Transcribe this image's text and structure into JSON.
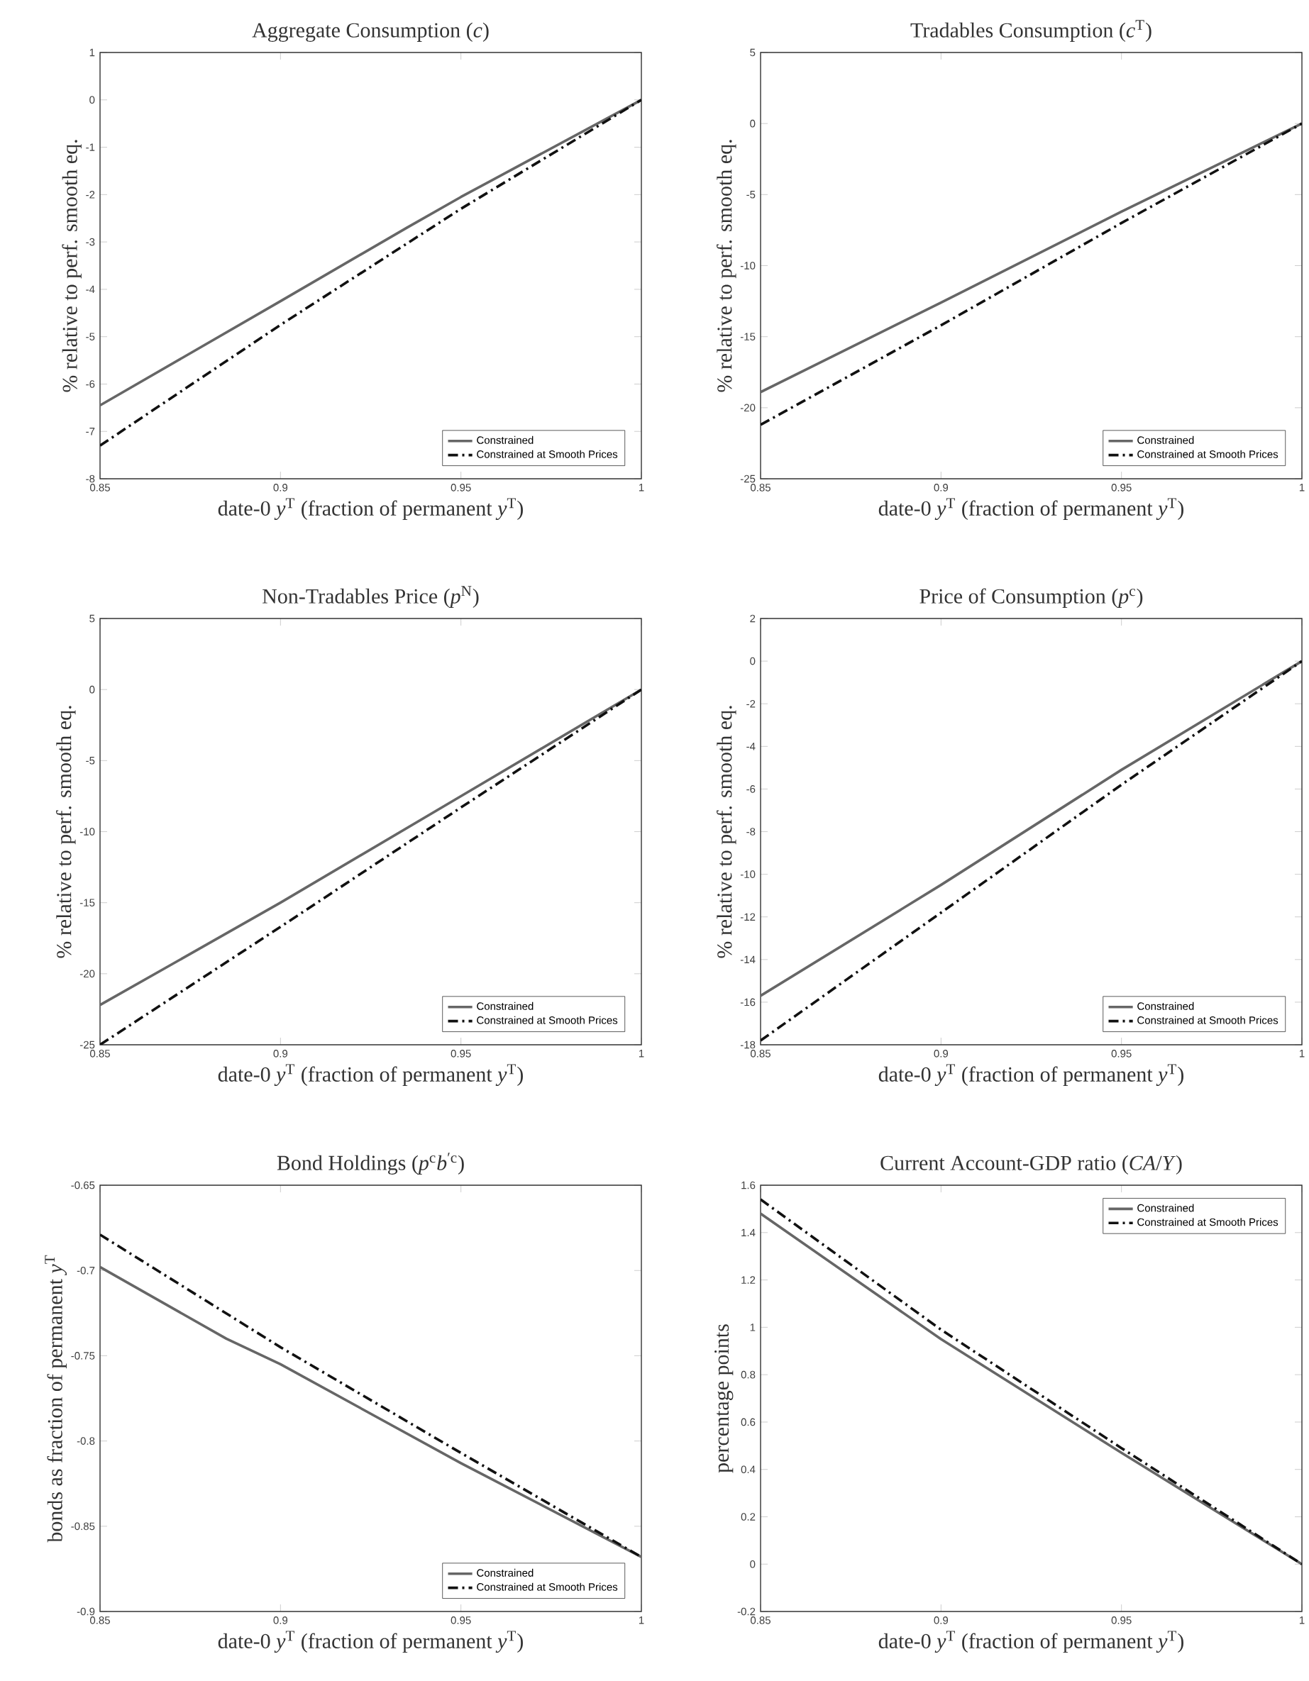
{
  "chart_data": [
    {
      "type": "line",
      "title": "Aggregate Consumption (*c*)",
      "xlabel": "date-0 *y*$^{T}$ (fraction of permanent *y*$^{T}$)",
      "ylabel": "% relative to perf. smooth eq.",
      "xlim": [
        0.85,
        1
      ],
      "ylim": [
        -8,
        1
      ],
      "xticks": [
        0.85,
        0.9,
        0.95,
        1
      ],
      "yticks": [
        -8,
        -7,
        -6,
        -5,
        -4,
        -3,
        -2,
        -1,
        0,
        1
      ],
      "legend": "bottom right",
      "marker": "none",
      "series": [
        {
          "name": "Constrained",
          "color": "#666666",
          "line_style": "solid",
          "x": [
            0.85,
            0.9,
            0.935,
            0.95,
            1
          ],
          "values": [
            -6.45,
            -4.25,
            -2.7,
            -2.05,
            0
          ]
        },
        {
          "name": "Constrained at Smooth Prices",
          "color": "#111111",
          "line_style": "dashdot",
          "x": [
            0.85,
            0.9,
            0.95,
            1
          ],
          "values": [
            -7.3,
            -4.75,
            -2.3,
            0
          ]
        }
      ]
    },
    {
      "type": "line",
      "title": "Tradables Consumption (*c*$^{T}$)",
      "xlabel": "date-0 *y*$^{T}$ (fraction of permanent *y*$^{T}$)",
      "ylabel": "% relative to perf. smooth eq.",
      "xlim": [
        0.85,
        1
      ],
      "ylim": [
        -25,
        5
      ],
      "xticks": [
        0.85,
        0.9,
        0.95,
        1
      ],
      "yticks": [
        -25,
        -20,
        -15,
        -10,
        -5,
        0,
        5
      ],
      "legend": "bottom right",
      "marker": "none",
      "series": [
        {
          "name": "Constrained",
          "color": "#666666",
          "line_style": "solid",
          "x": [
            0.85,
            0.9,
            0.95,
            1
          ],
          "values": [
            -18.9,
            -12.6,
            -6.2,
            0
          ]
        },
        {
          "name": "Constrained at Smooth Prices",
          "color": "#111111",
          "line_style": "dashdot",
          "x": [
            0.85,
            0.9,
            0.95,
            1
          ],
          "values": [
            -21.2,
            -14.2,
            -7.0,
            0
          ]
        }
      ]
    },
    {
      "type": "line",
      "title": "Non-Tradables Price (*p*$^{N}$)",
      "xlabel": "date-0 *y*$^{T}$ (fraction of permanent *y*$^{T}$)",
      "ylabel": "% relative to perf. smooth eq.",
      "xlim": [
        0.85,
        1
      ],
      "ylim": [
        -25,
        5
      ],
      "xticks": [
        0.85,
        0.9,
        0.95,
        1
      ],
      "yticks": [
        -25,
        -20,
        -15,
        -10,
        -5,
        0,
        5
      ],
      "legend": "bottom right",
      "marker": "none",
      "series": [
        {
          "name": "Constrained",
          "color": "#666666",
          "line_style": "solid",
          "x": [
            0.85,
            0.9,
            0.95,
            1
          ],
          "values": [
            -22.2,
            -15.0,
            -7.5,
            0
          ]
        },
        {
          "name": "Constrained at Smooth Prices",
          "color": "#111111",
          "line_style": "dashdot",
          "x": [
            0.85,
            0.9,
            0.95,
            1
          ],
          "values": [
            -25,
            -16.7,
            -8.3,
            0
          ]
        }
      ]
    },
    {
      "type": "line",
      "title": "Price of Consumption (*p*$^{c}$)",
      "xlabel": "date-0 *y*$^{T}$ (fraction of permanent *y*$^{T}$)",
      "ylabel": "% relative to perf. smooth eq.",
      "xlim": [
        0.85,
        1
      ],
      "ylim": [
        -18,
        2
      ],
      "xticks": [
        0.85,
        0.9,
        0.95,
        1
      ],
      "yticks": [
        -18,
        -16,
        -14,
        -12,
        -10,
        -8,
        -6,
        -4,
        -2,
        0,
        2
      ],
      "legend": "bottom right",
      "marker": "none",
      "series": [
        {
          "name": "Constrained",
          "color": "#666666",
          "line_style": "solid",
          "x": [
            0.85,
            0.9,
            0.95,
            1
          ],
          "values": [
            -15.7,
            -10.5,
            -5.1,
            0
          ]
        },
        {
          "name": "Constrained at Smooth Prices",
          "color": "#111111",
          "line_style": "dashdot",
          "x": [
            0.85,
            0.9,
            0.95,
            1
          ],
          "values": [
            -17.8,
            -11.8,
            -5.8,
            0
          ]
        }
      ]
    },
    {
      "type": "line",
      "title": "Bond Holdings (*p*$^{c}$*b*$^{′c}$)",
      "xlabel": "date-0 *y*$^{T}$ (fraction of permanent *y*$^{T}$)",
      "ylabel": "bonds as fraction of permanent *y*$^{T}$",
      "xlim": [
        0.85,
        1
      ],
      "ylim": [
        -0.9,
        -0.65
      ],
      "xticks": [
        0.85,
        0.9,
        0.95,
        1
      ],
      "yticks": [
        -0.9,
        -0.85,
        -0.8,
        -0.75,
        -0.7,
        -0.65
      ],
      "legend": "bottom right",
      "marker": "none",
      "series": [
        {
          "name": "Constrained",
          "color": "#666666",
          "line_style": "solid",
          "x": [
            0.85,
            0.885,
            0.9,
            0.95,
            1
          ],
          "values": [
            -0.698,
            -0.74,
            -0.755,
            -0.813,
            -0.868
          ]
        },
        {
          "name": "Constrained at Smooth Prices",
          "color": "#111111",
          "line_style": "dashdot",
          "x": [
            0.85,
            0.9,
            0.95,
            1
          ],
          "values": [
            -0.679,
            -0.745,
            -0.807,
            -0.868
          ]
        }
      ]
    },
    {
      "type": "line",
      "title": "Current Account-GDP ratio (*CA*/*Y*)",
      "xlabel": "date-0 *y*$^{T}$ (fraction of permanent *y*$^{T}$)",
      "ylabel": "percentage points",
      "xlim": [
        0.85,
        1
      ],
      "ylim": [
        -0.2,
        1.6
      ],
      "xticks": [
        0.85,
        0.9,
        0.95,
        1
      ],
      "yticks": [
        -0.2,
        0,
        0.2,
        0.4,
        0.6,
        0.8,
        1,
        1.2,
        1.4,
        1.6
      ],
      "legend": "top right",
      "marker": "none",
      "series": [
        {
          "name": "Constrained",
          "color": "#666666",
          "line_style": "solid",
          "x": [
            0.85,
            0.9,
            0.95,
            1
          ],
          "values": [
            1.48,
            0.95,
            0.47,
            0
          ]
        },
        {
          "name": "Constrained at Smooth Prices",
          "color": "#111111",
          "line_style": "dashdot",
          "x": [
            0.85,
            0.9,
            0.95,
            1
          ],
          "values": [
            1.54,
            0.99,
            0.49,
            0
          ]
        }
      ]
    }
  ]
}
